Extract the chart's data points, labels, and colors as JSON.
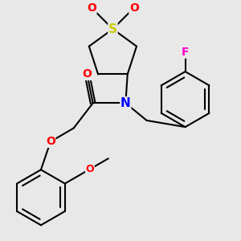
{
  "bg_color": "#e8e8e8",
  "bond_color": "#000000",
  "S_color": "#cccc00",
  "O_color": "#ff0000",
  "N_color": "#0000ff",
  "F_color": "#ff00cc",
  "line_width": 1.5,
  "font_size": 9,
  "fig_w": 3.0,
  "fig_h": 3.0,
  "dpi": 100,
  "xlim": [
    -2.5,
    3.5
  ],
  "ylim": [
    -3.5,
    2.5
  ]
}
